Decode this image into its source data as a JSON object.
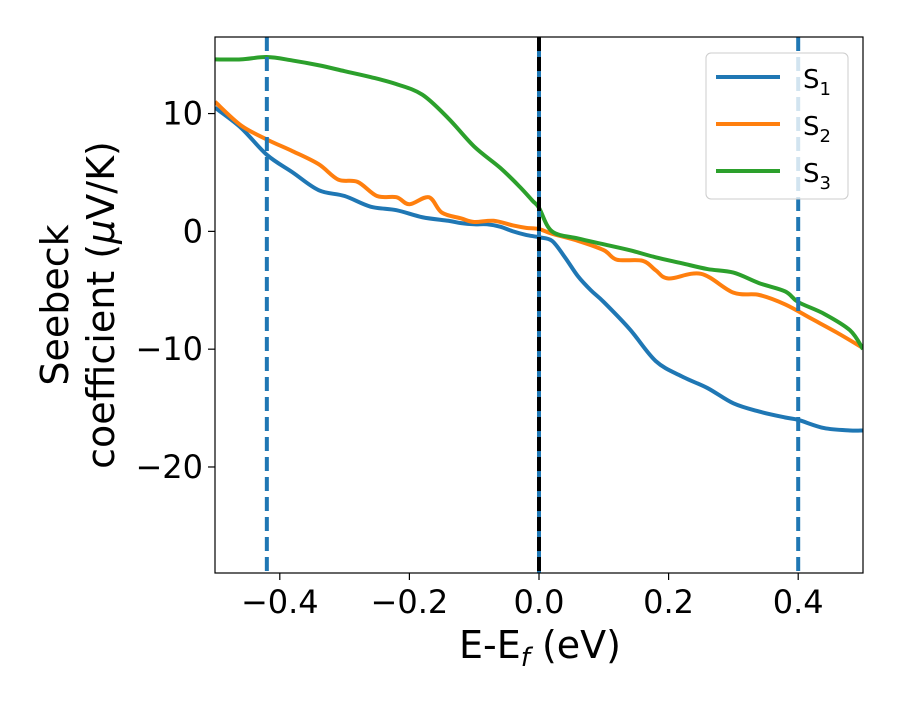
{
  "chart_data": {
    "type": "line",
    "title": "",
    "xlabel": {
      "base": "E-E",
      "sub": "f",
      "tail": " (eV)"
    },
    "ylabel": {
      "line1": "Seebeck",
      "line2_pre": "coefficient  (",
      "mu": "μ",
      "line2_post": "V/K)"
    },
    "xlim": [
      -0.5,
      0.5
    ],
    "ylim": [
      -29,
      16.5
    ],
    "xticks": [
      -0.4,
      -0.2,
      0.0,
      0.2,
      0.4
    ],
    "xtick_labels": [
      "−0.4",
      "−0.2",
      "0.0",
      "0.2",
      "0.4"
    ],
    "yticks": [
      10,
      0,
      -10,
      -20
    ],
    "ytick_labels": [
      "10",
      "0",
      "−10",
      "−20"
    ],
    "legend_position": "upper-right",
    "grid": false,
    "vlines": [
      {
        "x": -0.42,
        "style": "dashed",
        "color": "#1f77b4"
      },
      {
        "x": 0.0,
        "style": "solid",
        "color": "#1f77b4"
      },
      {
        "x": 0.0,
        "style": "dashed",
        "color": "#000000"
      },
      {
        "x": 0.4,
        "style": "dashed",
        "color": "#1f77b4"
      }
    ],
    "series": [
      {
        "name": "S",
        "sub": "1",
        "color": "#1f77b4",
        "x": [
          -0.5,
          -0.46,
          -0.42,
          -0.38,
          -0.34,
          -0.3,
          -0.26,
          -0.22,
          -0.18,
          -0.14,
          -0.12,
          -0.1,
          -0.08,
          -0.06,
          -0.04,
          -0.02,
          0.0,
          0.02,
          0.04,
          0.06,
          0.08,
          0.1,
          0.14,
          0.18,
          0.22,
          0.26,
          0.3,
          0.34,
          0.38,
          0.4,
          0.44,
          0.48,
          0.5
        ],
        "values": [
          10.5,
          8.8,
          6.5,
          5.0,
          3.5,
          3.0,
          2.1,
          1.8,
          1.2,
          0.9,
          0.7,
          0.6,
          0.6,
          0.4,
          0.0,
          -0.3,
          -0.5,
          -0.8,
          -2.2,
          -3.8,
          -5.0,
          -6.0,
          -8.3,
          -11.0,
          -12.3,
          -13.3,
          -14.6,
          -15.3,
          -15.8,
          -16.0,
          -16.7,
          -16.9,
          -16.9
        ]
      },
      {
        "name": "S",
        "sub": "2",
        "color": "#ff7f0e",
        "x": [
          -0.5,
          -0.46,
          -0.42,
          -0.38,
          -0.34,
          -0.31,
          -0.28,
          -0.25,
          -0.22,
          -0.2,
          -0.17,
          -0.15,
          -0.12,
          -0.1,
          -0.07,
          -0.04,
          -0.02,
          0.0,
          0.02,
          0.06,
          0.1,
          0.12,
          0.16,
          0.18,
          0.2,
          0.25,
          0.3,
          0.34,
          0.38,
          0.42,
          0.46,
          0.5
        ],
        "values": [
          11.0,
          9.0,
          7.8,
          6.8,
          5.7,
          4.4,
          4.2,
          3.0,
          2.9,
          2.3,
          2.9,
          1.6,
          1.1,
          0.8,
          0.9,
          0.5,
          0.3,
          0.2,
          -0.2,
          -0.8,
          -1.6,
          -2.4,
          -2.5,
          -3.3,
          -4.0,
          -3.6,
          -5.2,
          -5.4,
          -6.2,
          -7.4,
          -8.6,
          -9.9
        ]
      },
      {
        "name": "S",
        "sub": "3",
        "color": "#2ca02c",
        "x": [
          -0.5,
          -0.46,
          -0.42,
          -0.38,
          -0.34,
          -0.3,
          -0.26,
          -0.22,
          -0.18,
          -0.14,
          -0.1,
          -0.06,
          -0.03,
          -0.01,
          0.0,
          0.02,
          0.06,
          0.1,
          0.14,
          0.18,
          0.22,
          0.26,
          0.3,
          0.34,
          0.38,
          0.4,
          0.44,
          0.48,
          0.5
        ],
        "values": [
          14.6,
          14.6,
          14.8,
          14.5,
          14.1,
          13.6,
          13.1,
          12.5,
          11.6,
          9.6,
          7.2,
          5.4,
          3.8,
          2.6,
          2.0,
          0.0,
          -0.6,
          -1.1,
          -1.6,
          -2.2,
          -2.7,
          -3.2,
          -3.5,
          -4.4,
          -5.1,
          -6.0,
          -7.0,
          -8.4,
          -10.0
        ]
      }
    ]
  }
}
